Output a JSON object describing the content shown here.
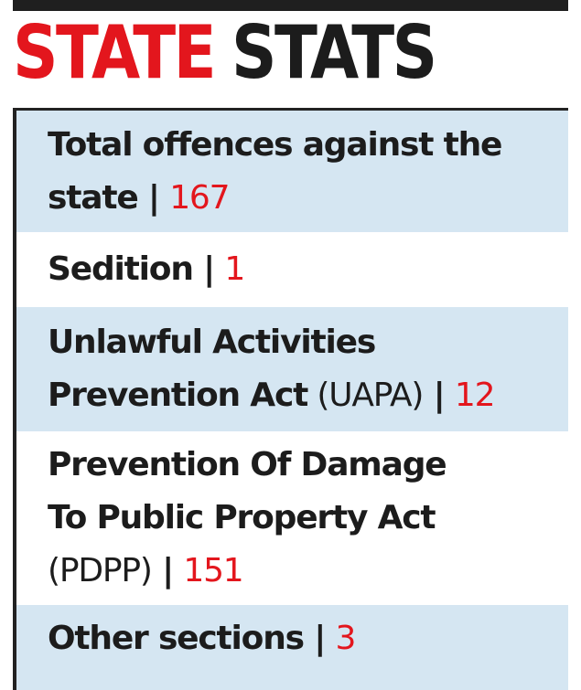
{
  "heading": {
    "part1": "STATE",
    "part2": "STATS"
  },
  "rows": [
    {
      "label": "Total offences against the state",
      "suffix": "",
      "value": "167"
    },
    {
      "label": "Sedition",
      "suffix": "",
      "value": "1"
    },
    {
      "label": "Unlawful Activities Prevention Act",
      "suffix": " (UAPA)",
      "value": "12"
    },
    {
      "label": "Prevention Of Damage To Public Property Act",
      "suffix": "(PDPP)",
      "value": "151"
    },
    {
      "label": "Other sections",
      "suffix": "",
      "value": "3"
    }
  ],
  "separator": " | ",
  "colors": {
    "accent_red": "#e3161d",
    "row_blue": "#d5e6f2",
    "text_dark": "#1c1c1c"
  }
}
